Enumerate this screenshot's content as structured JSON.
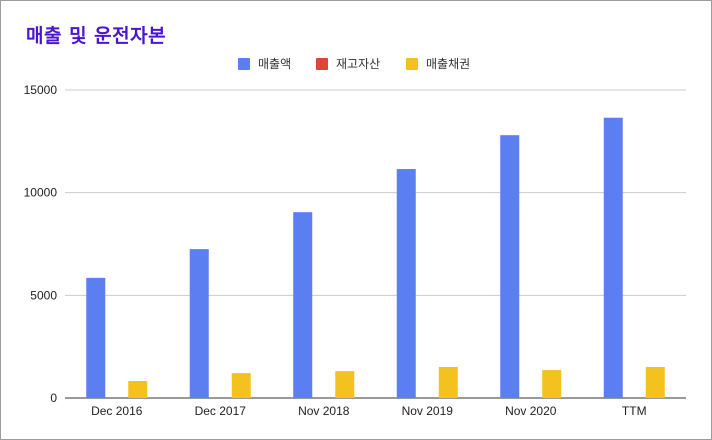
{
  "chart_data": {
    "type": "bar",
    "title": "매출 및 운전자본",
    "categories": [
      "Dec 2016",
      "Dec 2017",
      "Nov 2018",
      "Nov 2019",
      "Nov 2020",
      "TTM"
    ],
    "series": [
      {
        "name": "매출액",
        "color": "#5b7ff0",
        "values": [
          5850,
          7250,
          9050,
          11150,
          12800,
          13650
        ]
      },
      {
        "name": "재고자산",
        "color": "#e0453a",
        "values": [
          0,
          0,
          0,
          0,
          0,
          0
        ]
      },
      {
        "name": "매출채권",
        "color": "#f3c21e",
        "values": [
          830,
          1210,
          1310,
          1510,
          1360,
          1510
        ]
      }
    ],
    "ylim": [
      0,
      15000
    ],
    "yticks": [
      0,
      5000,
      10000,
      15000
    ],
    "ytick_labels": [
      "0",
      "5000",
      "10000",
      "15000"
    ],
    "grid": true,
    "legend_position": "top-center"
  }
}
